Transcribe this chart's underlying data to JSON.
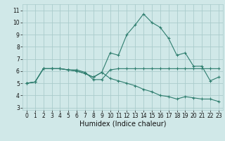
{
  "title": "",
  "xlabel": "Humidex (Indice chaleur)",
  "bg_color": "#d0e8e8",
  "grid_color": "#aacccc",
  "line_color": "#2e7d6e",
  "xlim": [
    -0.5,
    23.5
  ],
  "ylim": [
    2.8,
    11.5
  ],
  "yticks": [
    3,
    4,
    5,
    6,
    7,
    8,
    9,
    10,
    11
  ],
  "xticks": [
    0,
    1,
    2,
    3,
    4,
    5,
    6,
    7,
    8,
    9,
    10,
    11,
    12,
    13,
    14,
    15,
    16,
    17,
    18,
    19,
    20,
    21,
    22,
    23
  ],
  "line1_x": [
    0,
    1,
    2,
    3,
    4,
    5,
    6,
    7,
    8,
    9,
    10,
    11,
    12,
    13,
    14,
    15,
    16,
    17,
    18,
    19,
    20,
    21,
    22,
    23
  ],
  "line1_y": [
    5.0,
    5.1,
    6.2,
    6.2,
    6.2,
    6.1,
    6.1,
    5.9,
    5.3,
    5.3,
    6.1,
    6.2,
    6.2,
    6.2,
    6.2,
    6.2,
    6.2,
    6.2,
    6.2,
    6.2,
    6.2,
    6.2,
    6.2,
    6.2
  ],
  "line2_x": [
    0,
    1,
    2,
    3,
    4,
    5,
    6,
    7,
    8,
    9,
    10,
    11,
    12,
    13,
    14,
    15,
    16,
    17,
    18,
    19,
    20,
    21,
    22,
    23
  ],
  "line2_y": [
    5.0,
    5.1,
    6.2,
    6.2,
    6.2,
    6.1,
    6.0,
    5.8,
    5.5,
    5.9,
    7.5,
    7.3,
    9.0,
    9.8,
    10.7,
    10.0,
    9.6,
    8.7,
    7.3,
    7.5,
    6.4,
    6.4,
    5.2,
    5.5
  ],
  "line3_x": [
    0,
    1,
    2,
    3,
    4,
    5,
    6,
    7,
    8,
    9,
    10,
    11,
    12,
    13,
    14,
    15,
    16,
    17,
    18,
    19,
    20,
    21,
    22,
    23
  ],
  "line3_y": [
    5.0,
    5.1,
    6.2,
    6.2,
    6.2,
    6.1,
    6.0,
    5.8,
    5.5,
    5.9,
    5.4,
    5.2,
    5.0,
    4.8,
    4.5,
    4.3,
    4.0,
    3.9,
    3.7,
    3.9,
    3.8,
    3.7,
    3.7,
    3.5
  ],
  "xlabel_fontsize": 7,
  "tick_fontsize": 5.5,
  "linewidth": 0.8,
  "markersize": 3
}
